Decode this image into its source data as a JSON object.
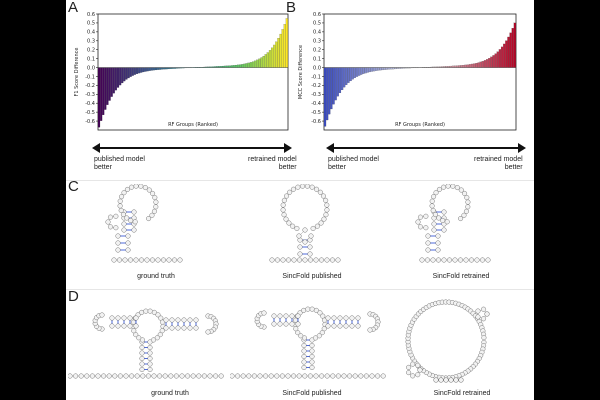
{
  "panels": {
    "A": "A",
    "B": "B",
    "C": "C",
    "D": "D"
  },
  "chart_data": [
    {
      "type": "bar",
      "panel": "A",
      "title": "",
      "xlabel": "RF Groups (Ranked)",
      "ylabel": "F1 Score Difference",
      "ylim": [
        -0.7,
        0.6
      ],
      "yticks": [
        "0.6",
        "0.5",
        "0.4",
        "0.3",
        "0.2",
        "0.1",
        "0.0",
        "-0.1",
        "-0.2",
        "-0.3",
        "-0.4",
        "-0.5",
        "-0.6"
      ],
      "ytick_values": [
        0.6,
        0.5,
        0.4,
        0.3,
        0.2,
        0.1,
        0.0,
        -0.1,
        -0.2,
        -0.3,
        -0.4,
        -0.5,
        -0.6
      ],
      "n_bars": 90,
      "min_value": -0.61,
      "max_value": 0.5,
      "colormap": "viridis",
      "sorted": "ascending"
    },
    {
      "type": "bar",
      "panel": "B",
      "title": "",
      "xlabel": "RF Groups (Ranked)",
      "ylabel": "MCC Score Difference",
      "ylim": [
        -0.7,
        0.6
      ],
      "yticks": [
        "0.6",
        "0.5",
        "0.4",
        "0.3",
        "0.2",
        "0.1",
        "0.0",
        "-0.1",
        "-0.2",
        "-0.3",
        "-0.4",
        "-0.5",
        "-0.6"
      ],
      "ytick_values": [
        0.6,
        0.5,
        0.4,
        0.3,
        0.2,
        0.1,
        0.0,
        -0.1,
        -0.2,
        -0.3,
        -0.4,
        -0.5,
        -0.6
      ],
      "n_bars": 90,
      "min_value": -0.6,
      "max_value": 0.45,
      "colormap": "coolwarm",
      "sorted": "ascending"
    }
  ],
  "arrows": {
    "left_label_line1": "published model",
    "left_label_line2": "better",
    "right_label_line1": "retrained model",
    "right_label_line2": "better"
  },
  "captions": {
    "c1": "ground truth",
    "c2": "SincFold published",
    "c3": "SincFold retrained",
    "d1": "ground truth",
    "d2": "SincFold published",
    "d3": "SincFold retrained"
  },
  "colors": {
    "pair_line": "#3b5bdb",
    "node_stroke": "#777777",
    "node_fill": "#f2f2f2"
  }
}
